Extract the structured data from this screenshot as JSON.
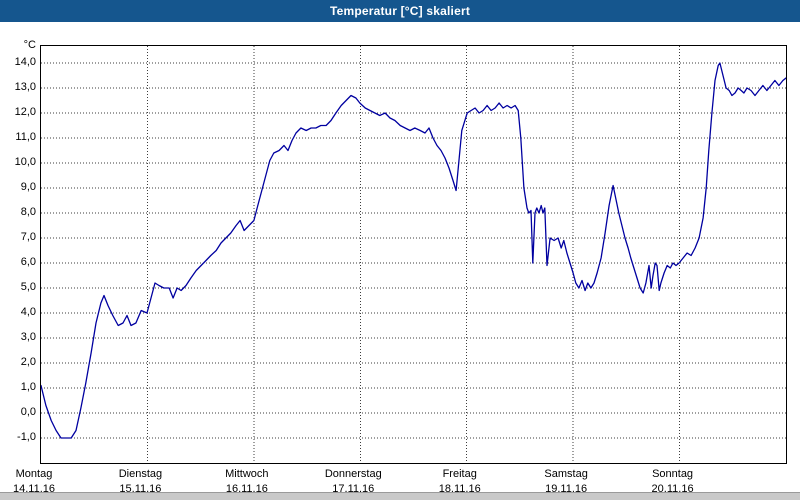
{
  "title_bar": {
    "title": "Temperatur [°C] skaliert",
    "bg_color": "#15568E",
    "text_color": "#ffffff"
  },
  "chart_data": {
    "type": "line",
    "title": "Temperatur [°C] skaliert",
    "ylabel": "°C",
    "xlabel": "",
    "ylim": [
      -1,
      14
    ],
    "y_tick_step": 1.0,
    "grid": "dashed",
    "legend": "none",
    "line_color": "#0000A0",
    "x_range_hours": [
      0,
      168
    ],
    "x_days": [
      {
        "name": "Montag",
        "date": "14.11.16"
      },
      {
        "name": "Dienstag",
        "date": "15.11.16"
      },
      {
        "name": "Mittwoch",
        "date": "16.11.16"
      },
      {
        "name": "Donnerstag",
        "date": "17.11.16"
      },
      {
        "name": "Freitag",
        "date": "18.11.16"
      },
      {
        "name": "Samstag",
        "date": "19.11.16"
      },
      {
        "name": "Sonntag",
        "date": "20.11.16"
      }
    ],
    "series": [
      {
        "name": "Temperatur",
        "unit": "°C",
        "points": [
          [
            0,
            1.1
          ],
          [
            1.1,
            0.3
          ],
          [
            2.3,
            -0.3
          ],
          [
            3.4,
            -0.7
          ],
          [
            4.5,
            -1.0
          ],
          [
            6.8,
            -1.0
          ],
          [
            7.9,
            -0.7
          ],
          [
            9.0,
            0.2
          ],
          [
            10.1,
            1.2
          ],
          [
            11.3,
            2.4
          ],
          [
            12.4,
            3.6
          ],
          [
            13.5,
            4.4
          ],
          [
            14.2,
            4.7
          ],
          [
            15.1,
            4.3
          ],
          [
            16.2,
            3.9
          ],
          [
            17.4,
            3.5
          ],
          [
            18.5,
            3.6
          ],
          [
            19.4,
            3.9
          ],
          [
            20.3,
            3.5
          ],
          [
            21.4,
            3.6
          ],
          [
            22.6,
            4.1
          ],
          [
            23.9,
            4.0
          ],
          [
            24.8,
            4.6
          ],
          [
            25.7,
            5.2
          ],
          [
            26.6,
            5.1
          ],
          [
            27.7,
            5.0
          ],
          [
            28.9,
            5.0
          ],
          [
            29.8,
            4.6
          ],
          [
            30.7,
            5.0
          ],
          [
            31.6,
            4.9
          ],
          [
            32.7,
            5.1
          ],
          [
            33.8,
            5.4
          ],
          [
            35.0,
            5.7
          ],
          [
            36.1,
            5.9
          ],
          [
            37.2,
            6.1
          ],
          [
            38.3,
            6.3
          ],
          [
            39.5,
            6.5
          ],
          [
            40.6,
            6.8
          ],
          [
            41.7,
            7.0
          ],
          [
            42.8,
            7.2
          ],
          [
            44.0,
            7.5
          ],
          [
            44.9,
            7.7
          ],
          [
            45.8,
            7.3
          ],
          [
            46.9,
            7.5
          ],
          [
            48.0,
            7.7
          ],
          [
            48.9,
            8.3
          ],
          [
            49.8,
            8.9
          ],
          [
            50.7,
            9.5
          ],
          [
            51.6,
            10.1
          ],
          [
            52.5,
            10.4
          ],
          [
            53.7,
            10.5
          ],
          [
            54.8,
            10.7
          ],
          [
            55.7,
            10.5
          ],
          [
            56.6,
            10.9
          ],
          [
            57.5,
            11.2
          ],
          [
            58.6,
            11.4
          ],
          [
            59.8,
            11.3
          ],
          [
            60.9,
            11.4
          ],
          [
            62.0,
            11.4
          ],
          [
            63.1,
            11.5
          ],
          [
            64.3,
            11.5
          ],
          [
            65.4,
            11.7
          ],
          [
            66.5,
            12.0
          ],
          [
            67.7,
            12.3
          ],
          [
            68.8,
            12.5
          ],
          [
            69.9,
            12.7
          ],
          [
            71.0,
            12.6
          ],
          [
            71.9,
            12.4
          ],
          [
            73.1,
            12.2
          ],
          [
            74.2,
            12.1
          ],
          [
            75.3,
            12.0
          ],
          [
            76.4,
            11.9
          ],
          [
            77.6,
            12.0
          ],
          [
            78.7,
            11.8
          ],
          [
            79.8,
            11.7
          ],
          [
            81.0,
            11.5
          ],
          [
            82.1,
            11.4
          ],
          [
            83.2,
            11.3
          ],
          [
            84.3,
            11.4
          ],
          [
            85.5,
            11.3
          ],
          [
            86.6,
            11.2
          ],
          [
            87.5,
            11.4
          ],
          [
            88.4,
            11.0
          ],
          [
            89.3,
            10.7
          ],
          [
            90.2,
            10.5
          ],
          [
            91.1,
            10.2
          ],
          [
            92.0,
            9.8
          ],
          [
            92.9,
            9.3
          ],
          [
            93.6,
            8.9
          ],
          [
            94.3,
            10.2
          ],
          [
            94.9,
            11.3
          ],
          [
            96.1,
            12.0
          ],
          [
            97.0,
            12.1
          ],
          [
            97.9,
            12.2
          ],
          [
            98.8,
            12.0
          ],
          [
            99.7,
            12.1
          ],
          [
            100.6,
            12.3
          ],
          [
            101.5,
            12.1
          ],
          [
            102.4,
            12.2
          ],
          [
            103.3,
            12.4
          ],
          [
            104.2,
            12.2
          ],
          [
            105.1,
            12.3
          ],
          [
            106.0,
            12.2
          ],
          [
            106.9,
            12.3
          ],
          [
            107.6,
            12.1
          ],
          [
            108.2,
            11.0
          ],
          [
            108.9,
            9.0
          ],
          [
            109.6,
            8.2
          ],
          [
            110.0,
            8.0
          ],
          [
            110.5,
            8.1
          ],
          [
            110.9,
            6.0
          ],
          [
            111.4,
            8.0
          ],
          [
            111.8,
            8.2
          ],
          [
            112.3,
            8.0
          ],
          [
            112.8,
            8.3
          ],
          [
            113.2,
            8.0
          ],
          [
            113.6,
            8.2
          ],
          [
            114.1,
            5.9
          ],
          [
            114.8,
            7.0
          ],
          [
            115.7,
            6.9
          ],
          [
            116.6,
            7.0
          ],
          [
            117.3,
            6.6
          ],
          [
            117.9,
            6.9
          ],
          [
            118.6,
            6.4
          ],
          [
            119.3,
            6.0
          ],
          [
            120.0,
            5.6
          ],
          [
            120.6,
            5.2
          ],
          [
            121.3,
            5.0
          ],
          [
            122.0,
            5.3
          ],
          [
            122.7,
            4.9
          ],
          [
            123.3,
            5.2
          ],
          [
            124.0,
            5.0
          ],
          [
            124.7,
            5.2
          ],
          [
            125.4,
            5.6
          ],
          [
            126.3,
            6.2
          ],
          [
            127.2,
            7.2
          ],
          [
            128.1,
            8.3
          ],
          [
            129.0,
            9.1
          ],
          [
            129.7,
            8.5
          ],
          [
            130.3,
            8.0
          ],
          [
            131.0,
            7.5
          ],
          [
            131.7,
            7.0
          ],
          [
            132.4,
            6.6
          ],
          [
            133.0,
            6.2
          ],
          [
            133.7,
            5.8
          ],
          [
            134.4,
            5.4
          ],
          [
            135.1,
            5.0
          ],
          [
            135.8,
            4.8
          ],
          [
            136.4,
            5.2
          ],
          [
            137.1,
            5.9
          ],
          [
            137.6,
            5.0
          ],
          [
            138.0,
            5.5
          ],
          [
            138.5,
            6.0
          ],
          [
            138.9,
            5.9
          ],
          [
            139.4,
            4.9
          ],
          [
            139.8,
            5.2
          ],
          [
            140.5,
            5.6
          ],
          [
            141.2,
            5.9
          ],
          [
            141.9,
            5.8
          ],
          [
            142.5,
            6.0
          ],
          [
            143.2,
            5.9
          ],
          [
            143.9,
            6.0
          ],
          [
            144.8,
            6.2
          ],
          [
            145.7,
            6.4
          ],
          [
            146.6,
            6.3
          ],
          [
            147.5,
            6.6
          ],
          [
            148.4,
            7.0
          ],
          [
            149.3,
            7.8
          ],
          [
            150.0,
            9.0
          ],
          [
            150.6,
            10.5
          ],
          [
            151.3,
            12.0
          ],
          [
            152.0,
            13.3
          ],
          [
            152.7,
            13.9
          ],
          [
            153.1,
            14.0
          ],
          [
            153.8,
            13.5
          ],
          [
            154.5,
            13.0
          ],
          [
            155.2,
            12.9
          ],
          [
            155.8,
            12.7
          ],
          [
            156.5,
            12.8
          ],
          [
            157.2,
            13.0
          ],
          [
            157.9,
            12.9
          ],
          [
            158.5,
            12.8
          ],
          [
            159.2,
            13.0
          ],
          [
            160.1,
            12.9
          ],
          [
            161.0,
            12.7
          ],
          [
            161.9,
            12.9
          ],
          [
            162.8,
            13.1
          ],
          [
            163.7,
            12.9
          ],
          [
            164.6,
            13.1
          ],
          [
            165.5,
            13.3
          ],
          [
            166.4,
            13.1
          ],
          [
            167.3,
            13.3
          ],
          [
            168.0,
            13.4
          ]
        ]
      }
    ]
  }
}
